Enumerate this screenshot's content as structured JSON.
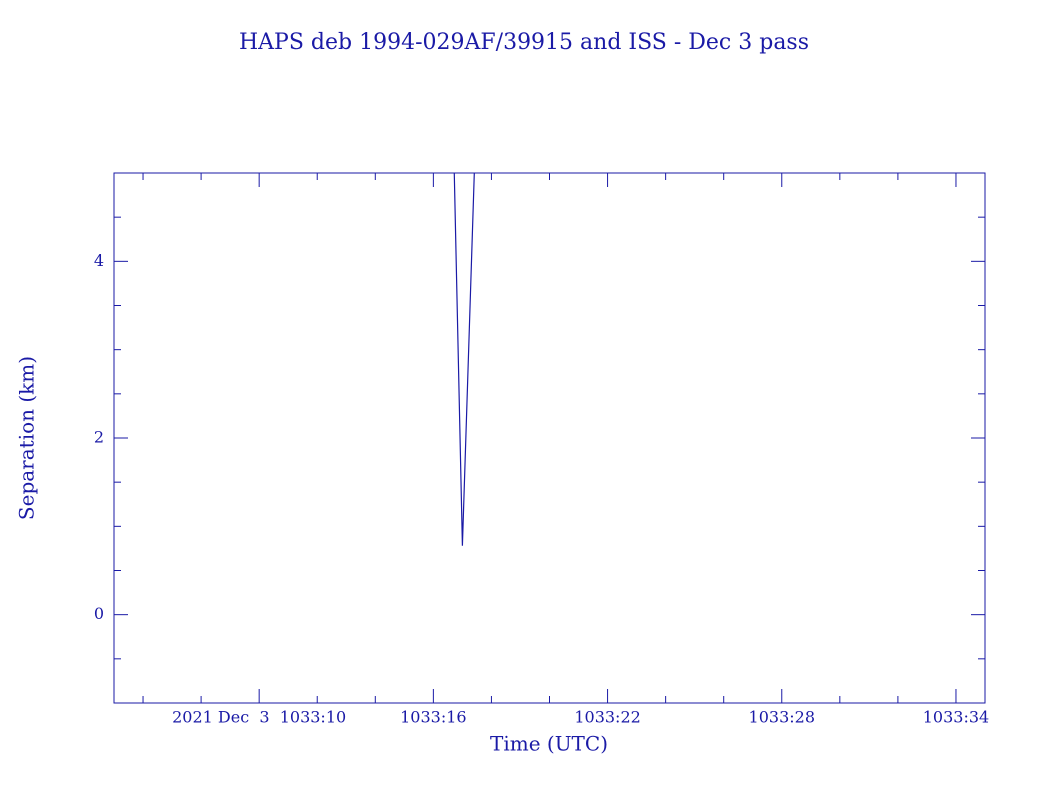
{
  "chart_data": {
    "type": "line",
    "title": "HAPS deb 1994-029AF/39915 and ISS - Dec 3 pass",
    "xlabel": "Time (UTC)",
    "ylabel": "Separation (km)",
    "x": [
      16.72,
      17.0,
      17.41
    ],
    "series": [
      {
        "color": "#1a1aa6",
        "values": [
          5,
          0.78,
          5
        ]
      }
    ],
    "xlim": [
      5,
      35
    ],
    "ylim": [
      -1,
      5
    ],
    "xticks": [
      {
        "value": 10,
        "label": "2021 Dec  3  1033:10"
      },
      {
        "value": 16,
        "label": "1033:16"
      },
      {
        "value": 22,
        "label": "1033:22"
      },
      {
        "value": 28,
        "label": "1033:28"
      },
      {
        "value": 34,
        "label": "1033:34"
      }
    ],
    "yticks": [
      0,
      2,
      4
    ],
    "xminor_ticks": [
      6,
      8,
      12,
      14,
      18,
      20,
      24,
      26,
      30,
      32
    ],
    "yminor_ticks": [
      -0.5,
      0.5,
      1,
      1.5,
      2.5,
      3,
      3.5,
      4.5
    ],
    "grid": false
  }
}
